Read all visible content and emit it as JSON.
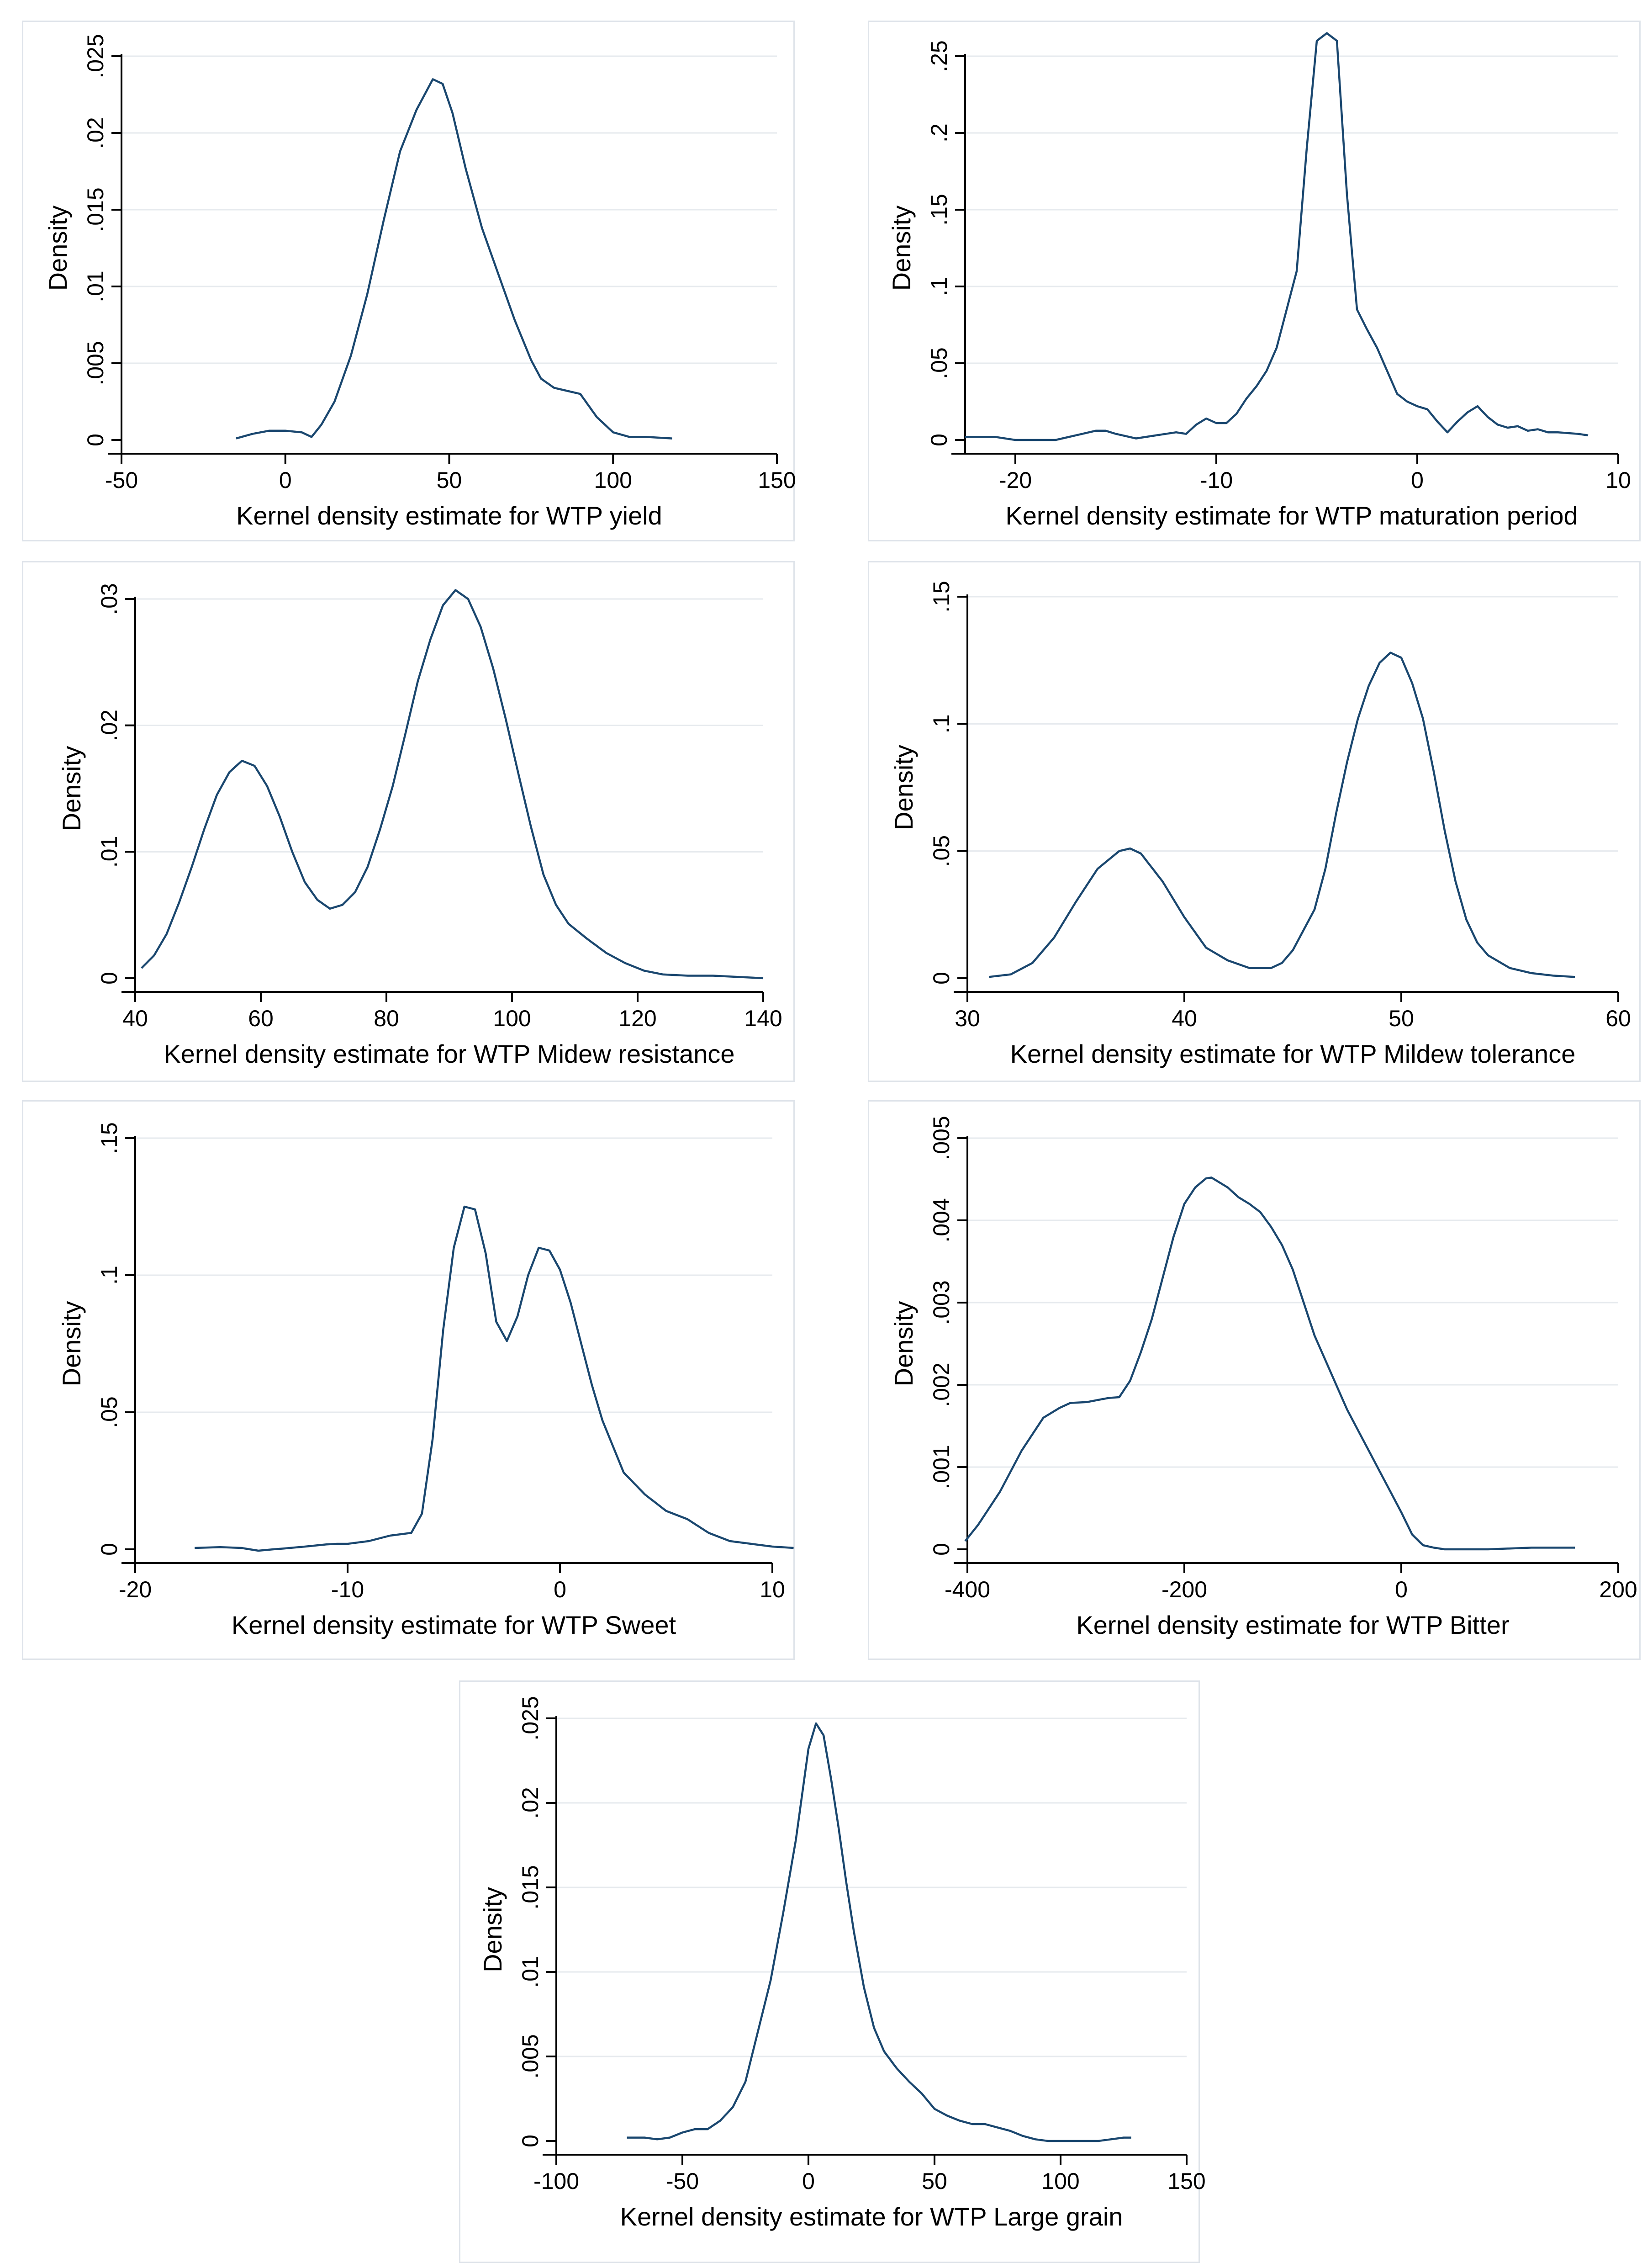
{
  "chart_data": [
    {
      "type": "line",
      "xlabel": "Kernel density estimate for WTP yield",
      "ylabel": "Density",
      "xlim": [
        -50,
        150
      ],
      "ylim": [
        0,
        0.025
      ],
      "xticks": [
        -50,
        0,
        50,
        100,
        150
      ],
      "xtick_labels": [
        "-50",
        "0",
        "50",
        "100",
        "150"
      ],
      "yticks": [
        0,
        0.005,
        0.01,
        0.015,
        0.02,
        0.025
      ],
      "ytick_labels": [
        "0",
        ".005",
        ".01",
        ".015",
        ".02",
        ".025"
      ],
      "grid": true,
      "x": [
        -15,
        -10,
        -5,
        0,
        5,
        8,
        11,
        15,
        20,
        25,
        30,
        35,
        40,
        45,
        48,
        51,
        55,
        60,
        65,
        70,
        75,
        78,
        82,
        86,
        90,
        95,
        100,
        105,
        110,
        118
      ],
      "y": [
        0.0001,
        0.0004,
        0.0006,
        0.0006,
        0.0005,
        0.0002,
        0.001,
        0.0025,
        0.0055,
        0.0095,
        0.0143,
        0.0188,
        0.0215,
        0.0235,
        0.0232,
        0.0213,
        0.0177,
        0.0138,
        0.0108,
        0.0078,
        0.0052,
        0.004,
        0.0034,
        0.0032,
        0.003,
        0.0015,
        0.0005,
        0.0002,
        0.0002,
        0.0001
      ]
    },
    {
      "type": "line",
      "xlabel": "Kernel density estimate for WTP maturation period",
      "ylabel": "Density",
      "xlim": [
        -22.5,
        10
      ],
      "ylim": [
        0,
        0.25
      ],
      "xticks": [
        -20,
        -10,
        0,
        10
      ],
      "xtick_labels": [
        "-20",
        "-10",
        "0",
        "10"
      ],
      "yticks": [
        0,
        0.05,
        0.1,
        0.15,
        0.2,
        0.25
      ],
      "ytick_labels": [
        "0",
        ".05",
        ".1",
        ".15",
        ".2",
        ".25"
      ],
      "grid": true,
      "x": [
        -22.5,
        -21,
        -20,
        -18,
        -17,
        -16,
        -15.5,
        -15,
        -14,
        -13,
        -12,
        -11.5,
        -11,
        -10.5,
        -10,
        -9.5,
        -9,
        -8.5,
        -8,
        -7.5,
        -7,
        -6.5,
        -6,
        -5.5,
        -5,
        -4.5,
        -4,
        -3.5,
        -3,
        -2.5,
        -2,
        -1.5,
        -1,
        -0.5,
        0,
        0.5,
        1,
        1.5,
        2,
        2.5,
        3,
        3.5,
        4,
        4.5,
        5,
        5.5,
        6,
        6.5,
        7,
        8,
        8.5
      ],
      "y": [
        0.002,
        0.002,
        0,
        0,
        0.003,
        0.006,
        0.006,
        0.004,
        0.001,
        0.003,
        0.005,
        0.004,
        0.01,
        0.014,
        0.011,
        0.011,
        0.017,
        0.027,
        0.035,
        0.045,
        0.06,
        0.085,
        0.11,
        0.19,
        0.26,
        0.265,
        0.26,
        0.16,
        0.085,
        0.072,
        0.06,
        0.045,
        0.03,
        0.025,
        0.022,
        0.02,
        0.012,
        0.005,
        0.012,
        0.018,
        0.022,
        0.015,
        0.01,
        0.008,
        0.009,
        0.006,
        0.007,
        0.005,
        0.005,
        0.004,
        0.003
      ]
    },
    {
      "type": "line",
      "xlabel": "Kernel density estimate for WTP Midew resistance",
      "ylabel": "Density",
      "xlim": [
        40,
        140
      ],
      "ylim": [
        0,
        0.03
      ],
      "xticks": [
        40,
        60,
        80,
        100,
        120,
        140
      ],
      "xtick_labels": [
        "40",
        "60",
        "80",
        "100",
        "120",
        "140"
      ],
      "yticks": [
        0,
        0.01,
        0.02,
        0.03
      ],
      "ytick_labels": [
        "0",
        ".01",
        ".02",
        ".03"
      ],
      "grid": true,
      "x": [
        41,
        43,
        45,
        47,
        49,
        51,
        53,
        55,
        57,
        59,
        61,
        63,
        65,
        67,
        69,
        71,
        73,
        75,
        77,
        79,
        81,
        83,
        85,
        87,
        89,
        91,
        93,
        95,
        97,
        99,
        101,
        103,
        105,
        107,
        109,
        112,
        115,
        118,
        121,
        124,
        128,
        132,
        136,
        140
      ],
      "y": [
        0.0008,
        0.0018,
        0.0035,
        0.006,
        0.0088,
        0.0118,
        0.0145,
        0.0163,
        0.0172,
        0.0168,
        0.0152,
        0.0128,
        0.01,
        0.0076,
        0.0062,
        0.0055,
        0.0058,
        0.0068,
        0.0088,
        0.0118,
        0.0152,
        0.0193,
        0.0235,
        0.0268,
        0.0295,
        0.0307,
        0.03,
        0.0278,
        0.0245,
        0.0205,
        0.0162,
        0.012,
        0.0082,
        0.0058,
        0.0043,
        0.0031,
        0.002,
        0.0012,
        0.0006,
        0.0003,
        0.0002,
        0.0002,
        0.0001,
        0
      ]
    },
    {
      "type": "line",
      "xlabel": "Kernel density estimate for WTP Mildew tolerance",
      "ylabel": "Density",
      "xlim": [
        30,
        60
      ],
      "ylim": [
        0,
        0.15
      ],
      "xticks": [
        30,
        40,
        50,
        60
      ],
      "xtick_labels": [
        "30",
        "40",
        "50",
        "60"
      ],
      "yticks": [
        0,
        0.05,
        0.1,
        0.15
      ],
      "ytick_labels": [
        "0",
        ".05",
        ".1",
        ".15"
      ],
      "grid": true,
      "x": [
        31,
        32,
        33,
        34,
        35,
        36,
        37,
        37.5,
        38,
        39,
        40,
        41,
        42,
        43,
        44,
        44.5,
        45,
        46,
        46.5,
        47,
        47.5,
        48,
        48.5,
        49,
        49.5,
        50,
        50.5,
        51,
        51.5,
        52,
        52.5,
        53,
        53.5,
        54,
        55,
        56,
        57,
        58
      ],
      "y": [
        0.0005,
        0.0015,
        0.006,
        0.016,
        0.03,
        0.043,
        0.05,
        0.051,
        0.049,
        0.038,
        0.024,
        0.012,
        0.007,
        0.004,
        0.004,
        0.006,
        0.011,
        0.027,
        0.043,
        0.065,
        0.085,
        0.102,
        0.115,
        0.124,
        0.128,
        0.126,
        0.116,
        0.102,
        0.081,
        0.058,
        0.038,
        0.023,
        0.014,
        0.009,
        0.004,
        0.002,
        0.001,
        0.0005
      ]
    },
    {
      "type": "line",
      "xlabel": "Kernel density estimate for WTP Sweet",
      "ylabel": "Density",
      "xlim": [
        -20,
        10
      ],
      "ylim": [
        0,
        0.15
      ],
      "xticks": [
        -20,
        -10,
        0,
        10
      ],
      "xtick_labels": [
        "-20",
        "-10",
        "0",
        "10"
      ],
      "yticks": [
        0,
        0.05,
        0.1,
        0.15
      ],
      "ytick_labels": [
        "0",
        ".05",
        ".1",
        ".15"
      ],
      "grid": true,
      "x": [
        -17.2,
        -16,
        -15,
        -14.2,
        -13.5,
        -13,
        -12,
        -11,
        -10.5,
        -10,
        -9,
        -8,
        -7,
        -6.5,
        -6,
        -5.5,
        -5,
        -4.5,
        -4,
        -3.5,
        -3,
        -2.5,
        -2,
        -1.5,
        -1,
        -0.5,
        0,
        0.5,
        1,
        1.5,
        2,
        3,
        4,
        5,
        6,
        7,
        8,
        9,
        10,
        11
      ],
      "y": [
        0.0005,
        0.0008,
        0.0005,
        -0.0005,
        0,
        0.0003,
        0.001,
        0.0018,
        0.002,
        0.002,
        0.003,
        0.005,
        0.006,
        0.013,
        0.04,
        0.08,
        0.11,
        0.125,
        0.124,
        0.108,
        0.083,
        0.076,
        0.085,
        0.1,
        0.11,
        0.109,
        0.102,
        0.09,
        0.075,
        0.06,
        0.047,
        0.028,
        0.02,
        0.014,
        0.011,
        0.006,
        0.003,
        0.002,
        0.001,
        0.0005
      ]
    },
    {
      "type": "line",
      "xlabel": "Kernel density estimate for WTP Bitter",
      "ylabel": "Density",
      "xlim": [
        -400,
        200
      ],
      "ylim": [
        0,
        0.005
      ],
      "xticks": [
        -400,
        -200,
        0,
        200
      ],
      "xtick_labels": [
        "-400",
        "-200",
        "0",
        "200"
      ],
      "yticks": [
        0,
        0.001,
        0.002,
        0.003,
        0.004,
        0.005
      ],
      "ytick_labels": [
        "0",
        ".001",
        ".002",
        ".003",
        ".004",
        ".005"
      ],
      "grid": true,
      "x": [
        -402,
        -390,
        -370,
        -350,
        -330,
        -315,
        -305,
        -290,
        -270,
        -260,
        -250,
        -240,
        -230,
        -220,
        -210,
        -200,
        -190,
        -180,
        -175,
        -170,
        -160,
        -150,
        -140,
        -130,
        -120,
        -110,
        -100,
        -90,
        -80,
        -70,
        -60,
        -50,
        -40,
        -30,
        -20,
        -10,
        0,
        10,
        20,
        30,
        40,
        60,
        80,
        100,
        120,
        140,
        160
      ],
      "y": [
        0.0001,
        0.0003,
        0.0007,
        0.0012,
        0.0016,
        0.00172,
        0.00178,
        0.00179,
        0.00184,
        0.00185,
        0.00205,
        0.0024,
        0.0028,
        0.0033,
        0.0038,
        0.0042,
        0.0044,
        0.00451,
        0.00452,
        0.00448,
        0.0044,
        0.00428,
        0.0042,
        0.0041,
        0.00392,
        0.0037,
        0.0034,
        0.003,
        0.0026,
        0.0023,
        0.002,
        0.0017,
        0.00145,
        0.0012,
        0.00095,
        0.0007,
        0.00045,
        0.00018,
        5e-05,
        2e-05,
        0,
        0,
        0,
        1e-05,
        2e-05,
        2e-05,
        2e-05
      ]
    },
    {
      "type": "line",
      "xlabel": "Kernel density estimate for WTP Large grain",
      "ylabel": "Density",
      "xlim": [
        -100,
        150
      ],
      "ylim": [
        0,
        0.025
      ],
      "xticks": [
        -100,
        -50,
        0,
        50,
        100,
        150
      ],
      "xtick_labels": [
        "-100",
        "-50",
        "0",
        "50",
        "100",
        "150"
      ],
      "yticks": [
        0,
        0.005,
        0.01,
        0.015,
        0.02,
        0.025
      ],
      "ytick_labels": [
        "0",
        ".005",
        ".01",
        ".015",
        ".02",
        ".025"
      ],
      "grid": true,
      "x": [
        -72,
        -65,
        -60,
        -55,
        -50,
        -45,
        -40,
        -35,
        -30,
        -25,
        -20,
        -15,
        -10,
        -5,
        0,
        3,
        6,
        9,
        12,
        15,
        18,
        22,
        26,
        30,
        35,
        40,
        45,
        50,
        55,
        60,
        65,
        70,
        75,
        80,
        85,
        90,
        95,
        100,
        105,
        110,
        115,
        120,
        125,
        128
      ],
      "y": [
        0.0002,
        0.0002,
        0.0001,
        0.0002,
        0.0005,
        0.0007,
        0.0007,
        0.0012,
        0.002,
        0.0035,
        0.0065,
        0.0095,
        0.0135,
        0.0178,
        0.0232,
        0.0247,
        0.024,
        0.0214,
        0.0185,
        0.0153,
        0.0124,
        0.0091,
        0.0067,
        0.0053,
        0.0043,
        0.0035,
        0.0028,
        0.0019,
        0.0015,
        0.0012,
        0.001,
        0.001,
        0.0008,
        0.0006,
        0.0003,
        0.0001,
        0,
        0,
        0,
        0,
        0,
        0.0001,
        0.0002,
        0.0002
      ]
    }
  ]
}
